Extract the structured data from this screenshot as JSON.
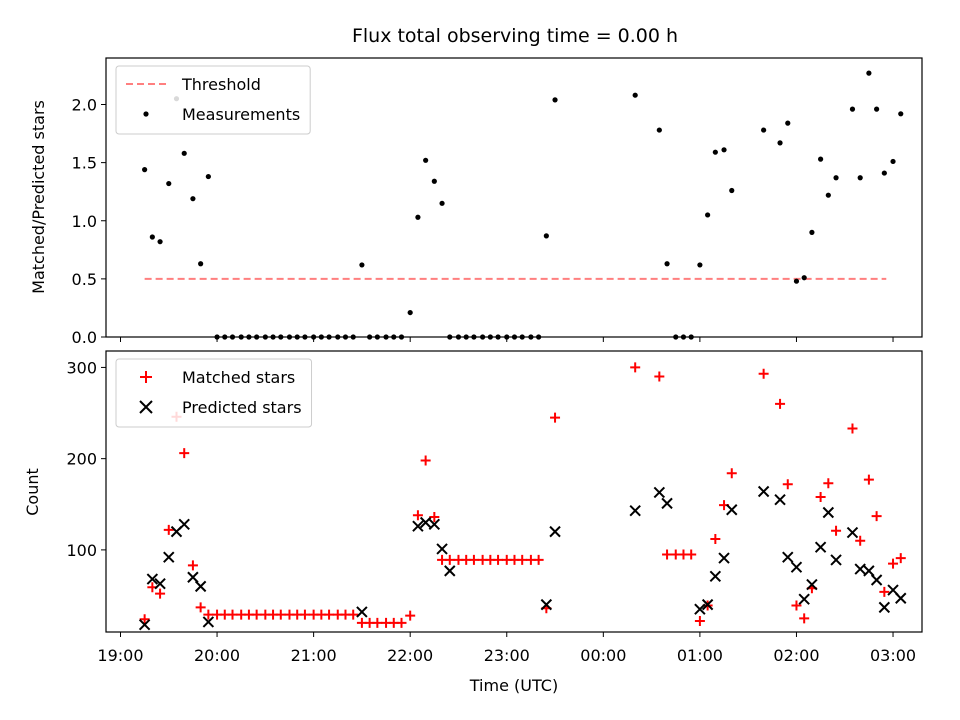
{
  "title": "Flux total observing time = 0.00 h",
  "xlabel": "Time (UTC)",
  "x_tick_labels": [
    "19:00",
    "20:00",
    "21:00",
    "22:00",
    "23:00",
    "00:00",
    "01:00",
    "02:00",
    "03:00"
  ],
  "colors": {
    "threshold": "#ff7f7f",
    "measurements": "#000000",
    "matched": "#ff0000",
    "predicted": "#000000"
  },
  "chart_data": [
    {
      "type": "scatter",
      "ylabel": "Matched/Predicted stars",
      "x_unit": "hours since 19:00 UTC",
      "xlim": [
        -0.15,
        8.3
      ],
      "ylim": [
        0,
        2.4
      ],
      "y_ticks": [
        "0.0",
        "0.5",
        "1.0",
        "1.5",
        "2.0"
      ],
      "legend_position": "top-left",
      "threshold": {
        "name": "Threshold",
        "y": 0.5,
        "x_range": [
          0.25,
          7.93
        ]
      },
      "series": [
        {
          "name": "Measurements",
          "points": [
            [
              0.25,
              1.44
            ],
            [
              0.33,
              0.86
            ],
            [
              0.41,
              0.82
            ],
            [
              0.5,
              1.32
            ],
            [
              0.58,
              2.05
            ],
            [
              0.66,
              1.58
            ],
            [
              0.75,
              1.19
            ],
            [
              0.83,
              0.63
            ],
            [
              0.91,
              1.38
            ],
            [
              1.0,
              0.0
            ],
            [
              1.08,
              0.0
            ],
            [
              1.16,
              0.0
            ],
            [
              1.25,
              0.0
            ],
            [
              1.33,
              0.0
            ],
            [
              1.41,
              0.0
            ],
            [
              1.5,
              0.0
            ],
            [
              1.58,
              0.0
            ],
            [
              1.66,
              0.0
            ],
            [
              1.75,
              0.0
            ],
            [
              1.83,
              0.0
            ],
            [
              1.91,
              0.0
            ],
            [
              2.0,
              0.0
            ],
            [
              2.08,
              0.0
            ],
            [
              2.16,
              0.0
            ],
            [
              2.25,
              0.0
            ],
            [
              2.33,
              0.0
            ],
            [
              2.41,
              0.0
            ],
            [
              2.5,
              0.62
            ],
            [
              2.58,
              0.0
            ],
            [
              2.66,
              0.0
            ],
            [
              2.75,
              0.0
            ],
            [
              2.83,
              0.0
            ],
            [
              2.91,
              0.0
            ],
            [
              3.0,
              0.21
            ],
            [
              3.08,
              1.03
            ],
            [
              3.16,
              1.52
            ],
            [
              3.25,
              1.34
            ],
            [
              3.33,
              1.15
            ],
            [
              3.41,
              0.0
            ],
            [
              3.5,
              0.0
            ],
            [
              3.58,
              0.0
            ],
            [
              3.66,
              0.0
            ],
            [
              3.75,
              0.0
            ],
            [
              3.83,
              0.0
            ],
            [
              3.91,
              0.0
            ],
            [
              4.0,
              0.0
            ],
            [
              4.08,
              0.0
            ],
            [
              4.16,
              0.0
            ],
            [
              4.25,
              0.0
            ],
            [
              4.33,
              0.0
            ],
            [
              4.41,
              0.87
            ],
            [
              4.5,
              2.04
            ],
            [
              5.33,
              2.08
            ],
            [
              5.58,
              1.78
            ],
            [
              5.66,
              0.63
            ],
            [
              5.75,
              0.0
            ],
            [
              5.83,
              0.0
            ],
            [
              5.91,
              0.0
            ],
            [
              6.0,
              0.62
            ],
            [
              6.08,
              1.05
            ],
            [
              6.16,
              1.59
            ],
            [
              6.25,
              1.61
            ],
            [
              6.33,
              1.26
            ],
            [
              6.66,
              1.78
            ],
            [
              6.83,
              1.67
            ],
            [
              6.91,
              1.84
            ],
            [
              7.0,
              0.48
            ],
            [
              7.08,
              0.51
            ],
            [
              7.16,
              0.9
            ],
            [
              7.25,
              1.53
            ],
            [
              7.33,
              1.22
            ],
            [
              7.41,
              1.37
            ],
            [
              7.58,
              1.96
            ],
            [
              7.66,
              1.37
            ],
            [
              7.75,
              2.27
            ],
            [
              7.83,
              1.96
            ],
            [
              7.91,
              1.41
            ],
            [
              8.0,
              1.51
            ],
            [
              8.08,
              1.92
            ]
          ]
        }
      ]
    },
    {
      "type": "scatter",
      "ylabel": "Count",
      "x_unit": "hours since 19:00 UTC",
      "xlim": [
        -0.15,
        8.3
      ],
      "ylim": [
        10,
        318
      ],
      "y_ticks": [
        "100",
        "200",
        "300"
      ],
      "legend_position": "top-left",
      "series": [
        {
          "name": "Matched stars",
          "marker": "plus",
          "points": [
            [
              0.25,
              24
            ],
            [
              0.33,
              59
            ],
            [
              0.41,
              52
            ],
            [
              0.5,
              122
            ],
            [
              0.58,
              246
            ],
            [
              0.66,
              206
            ],
            [
              0.75,
              83
            ],
            [
              0.83,
              37
            ],
            [
              0.91,
              29
            ],
            [
              1.0,
              29
            ],
            [
              1.08,
              29
            ],
            [
              1.16,
              29
            ],
            [
              1.25,
              29
            ],
            [
              1.33,
              29
            ],
            [
              1.41,
              29
            ],
            [
              1.5,
              29
            ],
            [
              1.58,
              29
            ],
            [
              1.66,
              29
            ],
            [
              1.75,
              29
            ],
            [
              1.83,
              29
            ],
            [
              1.91,
              29
            ],
            [
              2.0,
              29
            ],
            [
              2.08,
              29
            ],
            [
              2.16,
              29
            ],
            [
              2.25,
              29
            ],
            [
              2.33,
              29
            ],
            [
              2.41,
              29
            ],
            [
              2.5,
              20
            ],
            [
              2.58,
              20
            ],
            [
              2.66,
              20
            ],
            [
              2.75,
              20
            ],
            [
              2.83,
              20
            ],
            [
              2.91,
              20
            ],
            [
              3.0,
              28
            ],
            [
              3.08,
              138
            ],
            [
              3.16,
              198
            ],
            [
              3.25,
              136
            ],
            [
              3.33,
              89
            ],
            [
              3.41,
              89
            ],
            [
              3.5,
              89
            ],
            [
              3.58,
              89
            ],
            [
              3.66,
              89
            ],
            [
              3.75,
              89
            ],
            [
              3.83,
              89
            ],
            [
              3.91,
              89
            ],
            [
              4.0,
              89
            ],
            [
              4.08,
              89
            ],
            [
              4.16,
              89
            ],
            [
              4.25,
              89
            ],
            [
              4.33,
              89
            ],
            [
              4.41,
              36
            ],
            [
              4.5,
              245
            ],
            [
              5.33,
              300
            ],
            [
              5.58,
              290
            ],
            [
              5.66,
              95
            ],
            [
              5.75,
              95
            ],
            [
              5.83,
              95
            ],
            [
              5.91,
              95
            ],
            [
              6.0,
              22
            ],
            [
              6.08,
              39
            ],
            [
              6.16,
              112
            ],
            [
              6.25,
              149
            ],
            [
              6.33,
              184
            ],
            [
              6.66,
              293
            ],
            [
              6.83,
              260
            ],
            [
              6.91,
              172
            ],
            [
              7.0,
              39
            ],
            [
              7.08,
              25
            ],
            [
              7.16,
              58
            ],
            [
              7.25,
              158
            ],
            [
              7.33,
              173
            ],
            [
              7.41,
              121
            ],
            [
              7.58,
              233
            ],
            [
              7.66,
              110
            ],
            [
              7.75,
              177
            ],
            [
              7.83,
              137
            ],
            [
              7.91,
              54
            ],
            [
              8.0,
              85
            ],
            [
              8.08,
              91
            ]
          ]
        },
        {
          "name": "Predicted stars",
          "marker": "x",
          "points": [
            [
              0.25,
              18
            ],
            [
              0.33,
              68
            ],
            [
              0.41,
              63
            ],
            [
              0.5,
              92
            ],
            [
              0.58,
              120
            ],
            [
              0.66,
              128
            ],
            [
              0.75,
              70
            ],
            [
              0.83,
              60
            ],
            [
              0.91,
              21
            ],
            [
              2.5,
              32
            ],
            [
              3.08,
              126
            ],
            [
              3.16,
              130
            ],
            [
              3.25,
              128
            ],
            [
              3.33,
              101
            ],
            [
              3.41,
              77
            ],
            [
              4.41,
              40
            ],
            [
              4.5,
              120
            ],
            [
              5.33,
              143
            ],
            [
              5.58,
              163
            ],
            [
              5.66,
              151
            ],
            [
              6.0,
              35
            ],
            [
              6.08,
              40
            ],
            [
              6.16,
              71
            ],
            [
              6.25,
              91
            ],
            [
              6.33,
              144
            ],
            [
              6.66,
              164
            ],
            [
              6.83,
              155
            ],
            [
              6.91,
              92
            ],
            [
              7.0,
              81
            ],
            [
              7.08,
              46
            ],
            [
              7.16,
              62
            ],
            [
              7.25,
              103
            ],
            [
              7.33,
              141
            ],
            [
              7.41,
              89
            ],
            [
              7.58,
              119
            ],
            [
              7.66,
              79
            ],
            [
              7.75,
              77
            ],
            [
              7.83,
              67
            ],
            [
              7.91,
              37
            ],
            [
              8.0,
              56
            ],
            [
              8.08,
              47
            ]
          ]
        }
      ]
    }
  ]
}
